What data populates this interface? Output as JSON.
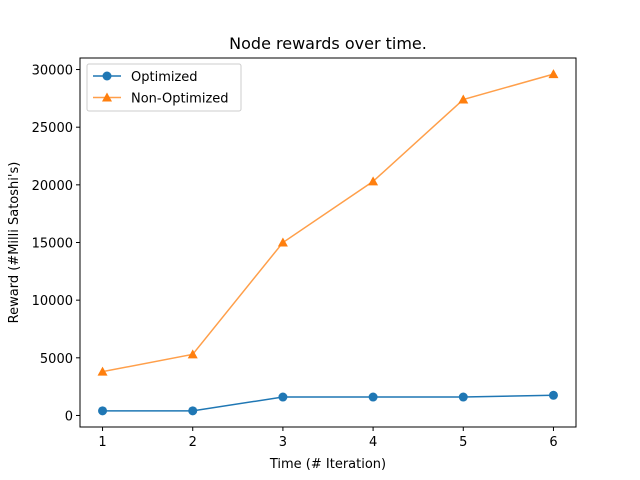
{
  "chart_data": {
    "type": "line",
    "title": "Node rewards over time.",
    "xlabel": "Time (# Iteration)",
    "ylabel": "Reward (#Milli Satoshi's)",
    "x": [
      1,
      2,
      3,
      4,
      5,
      6
    ],
    "xlim": [
      0.75,
      6.25
    ],
    "ylim": [
      -1000,
      31000
    ],
    "xticks": [
      1,
      2,
      3,
      4,
      5,
      6
    ],
    "yticks": [
      0,
      5000,
      10000,
      15000,
      20000,
      25000,
      30000
    ],
    "grid": false,
    "legend_position": "top-left",
    "series": [
      {
        "name": "Optimized",
        "values": [
          400,
          400,
          1600,
          1600,
          1600,
          1750
        ],
        "color": "#1f77b4",
        "marker": "circle"
      },
      {
        "name": "Non-Optimized",
        "values": [
          3800,
          5300,
          15000,
          20300,
          27400,
          29600
        ],
        "color": "#ff7f0e",
        "marker": "triangle"
      }
    ]
  }
}
